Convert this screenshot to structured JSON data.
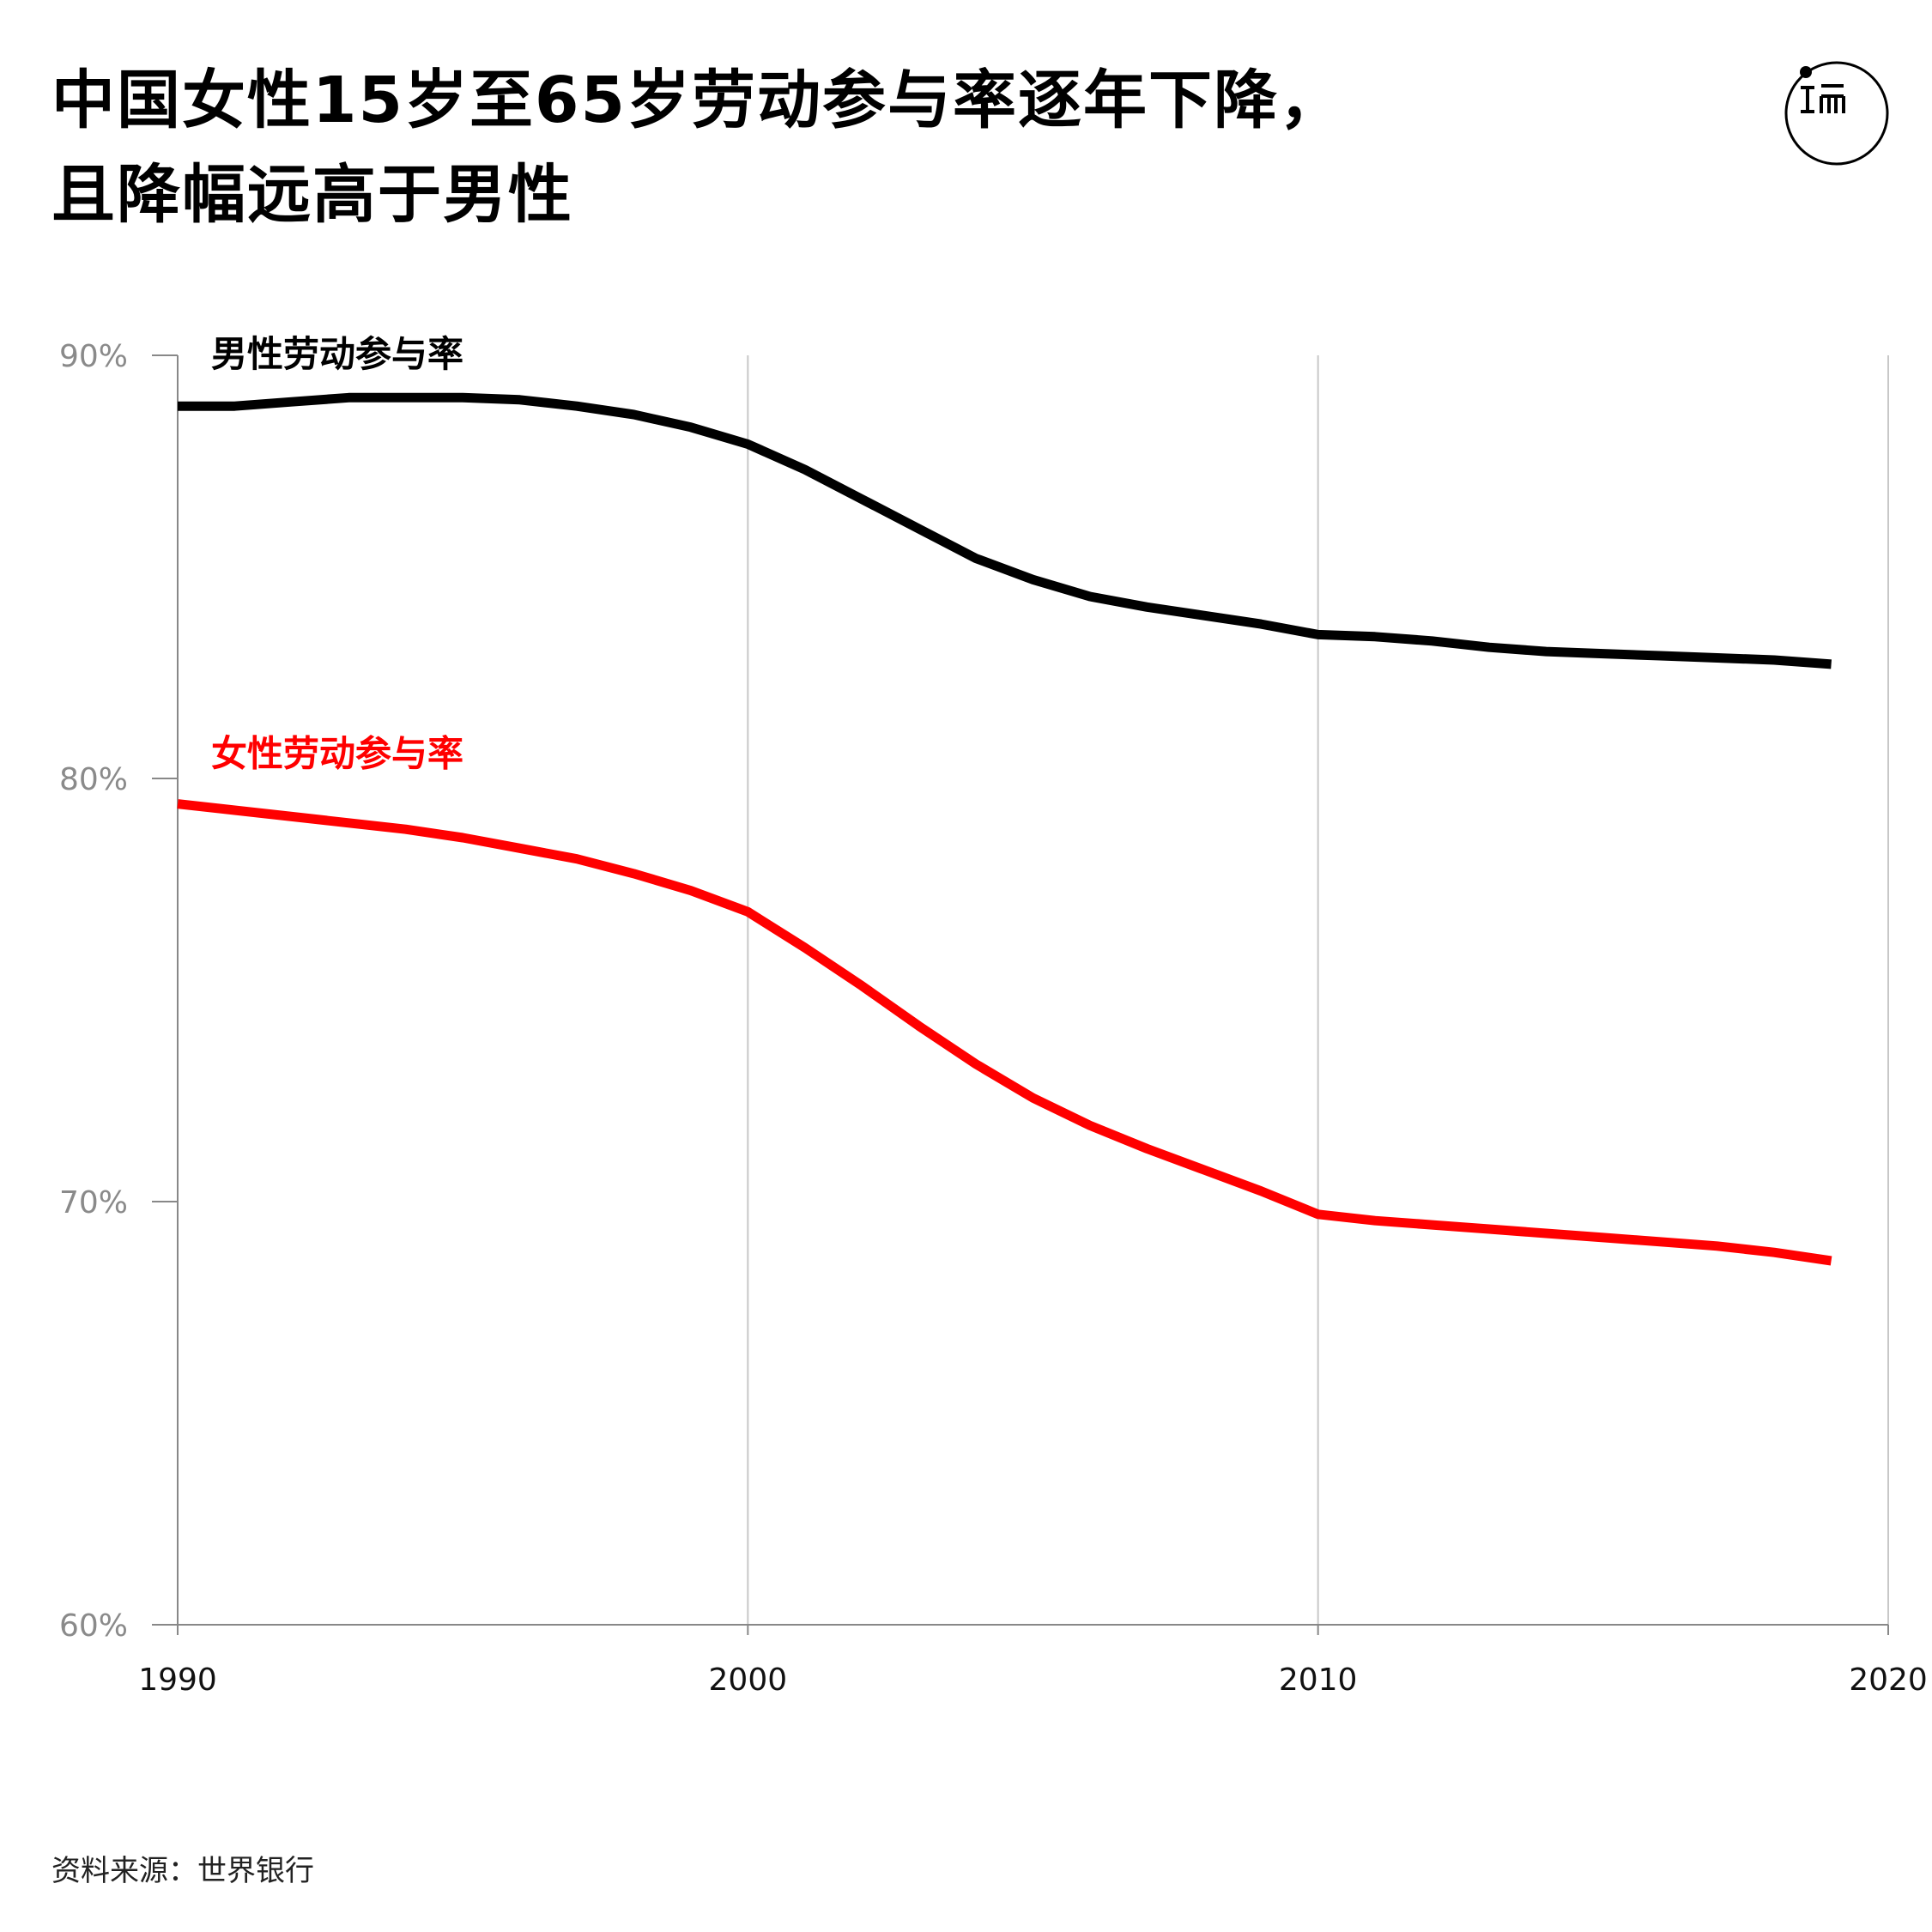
{
  "header": {
    "title_line1": "中国女性15岁至65岁劳动参与率逐年下降，",
    "title_line2": "且降幅远高于男性"
  },
  "logo": {
    "icon": "initium-logo-icon",
    "color": "#000000"
  },
  "source": "资料来源：世界银行",
  "chart_data": {
    "type": "line",
    "title": "中国女性15岁至65岁劳动参与率逐年下降，且降幅远高于男性",
    "xlabel": "",
    "ylabel": "",
    "xlim": [
      1990,
      2020
    ],
    "ylim": [
      60,
      90
    ],
    "x_ticks": [
      1990,
      2000,
      2010,
      2020
    ],
    "y_ticks": [
      60,
      70,
      80,
      90
    ],
    "y_tick_labels": [
      "60%",
      "70%",
      "80%",
      "90%"
    ],
    "grid": "vertical",
    "x": [
      1990,
      1991,
      1992,
      1993,
      1994,
      1995,
      1996,
      1997,
      1998,
      1999,
      2000,
      2001,
      2002,
      2003,
      2004,
      2005,
      2006,
      2007,
      2008,
      2009,
      2010,
      2011,
      2012,
      2013,
      2014,
      2015,
      2016,
      2017,
      2018,
      2019
    ],
    "series": [
      {
        "name": "男性劳动参与率",
        "color": "#000000",
        "values": [
          88.8,
          88.8,
          88.9,
          89.0,
          89.0,
          89.0,
          88.95,
          88.8,
          88.6,
          88.3,
          87.9,
          87.3,
          86.6,
          85.9,
          85.2,
          84.7,
          84.3,
          84.05,
          83.85,
          83.65,
          83.4,
          83.35,
          83.25,
          83.1,
          83.0,
          82.95,
          82.9,
          82.85,
          82.8,
          82.7
        ]
      },
      {
        "name": "女性劳动参与率",
        "color": "#ff0000",
        "values": [
          79.4,
          79.25,
          79.1,
          78.95,
          78.8,
          78.6,
          78.35,
          78.1,
          77.75,
          77.35,
          76.85,
          76.0,
          75.1,
          74.15,
          73.25,
          72.45,
          71.8,
          71.25,
          70.75,
          70.25,
          69.7,
          69.55,
          69.45,
          69.35,
          69.25,
          69.15,
          69.05,
          68.95,
          68.8,
          68.6
        ]
      }
    ]
  }
}
